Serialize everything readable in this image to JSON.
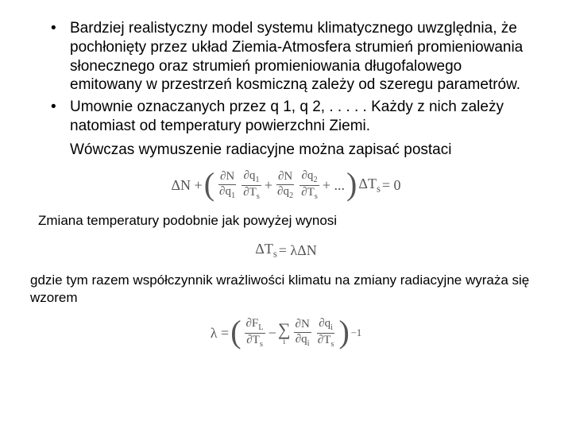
{
  "bullets": [
    "Bardziej realistyczny model systemu klimatycznego uwzględnia, że pochłonięty przez układ Ziemia-Atmosfera strumień promieniowania słonecznego oraz strumień promieniowania długofalowego emitowany w przestrzeń kosmiczną zależy od szeregu parametrów.",
    "Umownie oznaczanych przez q 1, q 2, . . . . . Każdy z nich zależy natomiast od temperatury powierzchni Ziemi."
  ],
  "after_bullets": "Wówczas wymuszenie radiacyjne można zapisać postaci",
  "para_mid": "Zmiana temperatury podobnie jak powyżej wynosi",
  "para_end": "gdzie tym razem współczynnik wrażliwości klimatu na zmiany radiacyjne wyraża się wzorem",
  "eq1": {
    "lhs": "ΔN +",
    "f1n": "∂N",
    "f1d": "∂q",
    "f1di": "1",
    "f2n": "∂q",
    "f2ni": "1",
    "f2d": "∂T",
    "f2di": "s",
    "plus": "+",
    "f3n": "∂N",
    "f3d": "∂q",
    "f3di": "2",
    "f4n": "∂q",
    "f4ni": "2",
    "f4d": "∂T",
    "f4di": "s",
    "dots": "+ ...",
    "tail": "ΔT",
    "tailsub": "s",
    "rhs": "= 0"
  },
  "eq2": {
    "l": "ΔT",
    "lsub": "s",
    "eq": " = λΔN"
  },
  "eq3": {
    "lhs": "λ =",
    "f1n": "∂F",
    "f1nsub": "L",
    "f1d": "∂T",
    "f1dsub": "s",
    "minus": "−",
    "sum_lo": "i",
    "f2n": "∂N",
    "f2d": "∂q",
    "f2dsub": "i",
    "f3n": "∂q",
    "f3nsub": "i",
    "f3d": "∂T",
    "f3dsub": "s",
    "exp": "−1"
  }
}
